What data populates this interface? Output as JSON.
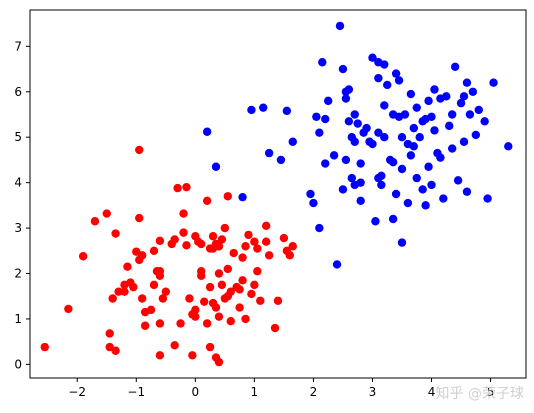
{
  "chart_data": {
    "type": "scatter",
    "title": "",
    "xlabel": "",
    "ylabel": "",
    "xlim": [
      -2.8,
      5.6
    ],
    "ylim": [
      -0.3,
      7.8
    ],
    "xticks": [
      -2,
      -1,
      0,
      1,
      2,
      3,
      4,
      5
    ],
    "yticks": [
      0,
      1,
      2,
      3,
      4,
      5,
      6,
      7
    ],
    "grid": false,
    "legend": "none",
    "series": [
      {
        "color": "#ff0000",
        "points": [
          [
            -2.55,
            0.38
          ],
          [
            -2.15,
            1.22
          ],
          [
            -1.9,
            2.38
          ],
          [
            -1.7,
            3.15
          ],
          [
            -1.5,
            3.32
          ],
          [
            -1.45,
            0.68
          ],
          [
            -1.45,
            0.38
          ],
          [
            -1.4,
            1.45
          ],
          [
            -1.35,
            2.88
          ],
          [
            -1.35,
            0.3
          ],
          [
            -1.3,
            1.6
          ],
          [
            -1.2,
            1.75
          ],
          [
            -1.2,
            1.6
          ],
          [
            -1.15,
            2.15
          ],
          [
            -1.1,
            1.8
          ],
          [
            -1.05,
            1.7
          ],
          [
            -1.0,
            2.48
          ],
          [
            -0.95,
            4.72
          ],
          [
            -0.95,
            3.22
          ],
          [
            -0.95,
            2.3
          ],
          [
            -0.9,
            2.4
          ],
          [
            -0.9,
            1.45
          ],
          [
            -0.85,
            1.15
          ],
          [
            -0.85,
            0.85
          ],
          [
            -0.75,
            1.2
          ],
          [
            -0.7,
            2.5
          ],
          [
            -0.7,
            1.75
          ],
          [
            -0.65,
            2.05
          ],
          [
            -0.6,
            2.72
          ],
          [
            -0.6,
            2.05
          ],
          [
            -0.6,
            1.95
          ],
          [
            -0.6,
            0.9
          ],
          [
            -0.6,
            0.2
          ],
          [
            -0.55,
            1.45
          ],
          [
            -0.5,
            1.6
          ],
          [
            -0.4,
            2.65
          ],
          [
            -0.35,
            2.75
          ],
          [
            -0.35,
            0.42
          ],
          [
            -0.3,
            3.88
          ],
          [
            -0.25,
            0.9
          ],
          [
            -0.2,
            3.32
          ],
          [
            -0.2,
            2.9
          ],
          [
            -0.15,
            3.9
          ],
          [
            -0.15,
            2.62
          ],
          [
            -0.1,
            1.45
          ],
          [
            -0.05,
            1.1
          ],
          [
            -0.05,
            0.2
          ],
          [
            0.0,
            2.82
          ],
          [
            0.0,
            1.05
          ],
          [
            0.0,
            1.2
          ],
          [
            0.05,
            2.7
          ],
          [
            0.1,
            2.65
          ],
          [
            0.1,
            2.05
          ],
          [
            0.1,
            1.95
          ],
          [
            0.15,
            1.38
          ],
          [
            0.2,
            3.6
          ],
          [
            0.2,
            0.9
          ],
          [
            0.25,
            2.55
          ],
          [
            0.25,
            1.7
          ],
          [
            0.25,
            0.38
          ],
          [
            0.3,
            2.82
          ],
          [
            0.3,
            2.55
          ],
          [
            0.3,
            1.35
          ],
          [
            0.35,
            2.65
          ],
          [
            0.35,
            1.25
          ],
          [
            0.35,
            0.15
          ],
          [
            0.4,
            2.6
          ],
          [
            0.4,
            1.05
          ],
          [
            0.4,
            2.0
          ],
          [
            0.4,
            0.05
          ],
          [
            0.45,
            2.75
          ],
          [
            0.45,
            1.75
          ],
          [
            0.5,
            3.0
          ],
          [
            0.5,
            1.45
          ],
          [
            0.55,
            3.7
          ],
          [
            0.55,
            2.1
          ],
          [
            0.55,
            1.5
          ],
          [
            0.6,
            1.6
          ],
          [
            0.6,
            0.95
          ],
          [
            0.65,
            2.45
          ],
          [
            0.7,
            1.7
          ],
          [
            0.75,
            1.65
          ],
          [
            0.75,
            1.25
          ],
          [
            0.8,
            2.35
          ],
          [
            0.8,
            1.85
          ],
          [
            0.85,
            2.6
          ],
          [
            0.85,
            1.0
          ],
          [
            0.9,
            2.85
          ],
          [
            0.95,
            1.55
          ],
          [
            1.0,
            2.7
          ],
          [
            1.0,
            1.75
          ],
          [
            1.05,
            2.55
          ],
          [
            1.05,
            2.05
          ],
          [
            1.1,
            1.4
          ],
          [
            1.2,
            3.05
          ],
          [
            1.2,
            2.7
          ],
          [
            1.25,
            2.4
          ],
          [
            1.35,
            0.8
          ],
          [
            1.4,
            1.4
          ],
          [
            1.5,
            2.78
          ],
          [
            1.55,
            2.5
          ],
          [
            1.6,
            2.4
          ],
          [
            1.65,
            2.6
          ]
        ]
      },
      {
        "color": "#0000ff",
        "points": [
          [
            0.2,
            5.12
          ],
          [
            0.35,
            4.35
          ],
          [
            0.8,
            3.68
          ],
          [
            0.95,
            5.6
          ],
          [
            1.15,
            5.65
          ],
          [
            1.25,
            4.65
          ],
          [
            1.45,
            4.5
          ],
          [
            1.55,
            5.58
          ],
          [
            1.65,
            4.9
          ],
          [
            1.95,
            3.75
          ],
          [
            2.0,
            3.55
          ],
          [
            2.05,
            5.45
          ],
          [
            2.1,
            5.1
          ],
          [
            2.1,
            3.0
          ],
          [
            2.15,
            6.65
          ],
          [
            2.2,
            5.4
          ],
          [
            2.2,
            4.42
          ],
          [
            2.25,
            5.8
          ],
          [
            2.35,
            4.6
          ],
          [
            2.4,
            2.2
          ],
          [
            2.45,
            7.45
          ],
          [
            2.5,
            6.5
          ],
          [
            2.5,
            3.85
          ],
          [
            2.55,
            6.0
          ],
          [
            2.55,
            5.85
          ],
          [
            2.55,
            4.5
          ],
          [
            2.6,
            6.05
          ],
          [
            2.6,
            5.35
          ],
          [
            2.65,
            5.0
          ],
          [
            2.65,
            4.1
          ],
          [
            2.7,
            4.9
          ],
          [
            2.7,
            3.95
          ],
          [
            2.7,
            5.5
          ],
          [
            2.75,
            5.3
          ],
          [
            2.8,
            4.42
          ],
          [
            2.8,
            4.0
          ],
          [
            2.8,
            3.6
          ],
          [
            2.85,
            5.1
          ],
          [
            2.9,
            5.2
          ],
          [
            2.95,
            4.9
          ],
          [
            3.0,
            6.75
          ],
          [
            3.0,
            4.85
          ],
          [
            3.05,
            3.15
          ],
          [
            3.1,
            6.65
          ],
          [
            3.1,
            6.3
          ],
          [
            3.1,
            5.1
          ],
          [
            3.1,
            4.1
          ],
          [
            3.15,
            3.95
          ],
          [
            3.15,
            4.15
          ],
          [
            3.2,
            6.6
          ],
          [
            3.2,
            5.7
          ],
          [
            3.2,
            5.0
          ],
          [
            3.25,
            6.15
          ],
          [
            3.3,
            4.5
          ],
          [
            3.35,
            5.5
          ],
          [
            3.35,
            3.2
          ],
          [
            3.35,
            4.45
          ],
          [
            3.4,
            6.4
          ],
          [
            3.4,
            3.75
          ],
          [
            3.45,
            6.25
          ],
          [
            3.45,
            5.45
          ],
          [
            3.5,
            5.0
          ],
          [
            3.5,
            4.3
          ],
          [
            3.5,
            2.68
          ],
          [
            3.55,
            5.5
          ],
          [
            3.6,
            3.55
          ],
          [
            3.6,
            4.85
          ],
          [
            3.65,
            5.95
          ],
          [
            3.65,
            4.6
          ],
          [
            3.7,
            5.2
          ],
          [
            3.7,
            4.8
          ],
          [
            3.75,
            5.65
          ],
          [
            3.75,
            4.1
          ],
          [
            3.8,
            5.0
          ],
          [
            3.85,
            3.85
          ],
          [
            3.85,
            5.35
          ],
          [
            3.9,
            5.4
          ],
          [
            3.9,
            3.5
          ],
          [
            3.95,
            5.8
          ],
          [
            3.95,
            4.35
          ],
          [
            4.0,
            5.45
          ],
          [
            4.0,
            3.95
          ],
          [
            4.05,
            6.05
          ],
          [
            4.05,
            5.15
          ],
          [
            4.1,
            4.65
          ],
          [
            4.15,
            5.85
          ],
          [
            4.15,
            4.55
          ],
          [
            4.2,
            3.65
          ],
          [
            4.25,
            5.9
          ],
          [
            4.3,
            5.25
          ],
          [
            4.35,
            5.5
          ],
          [
            4.35,
            4.75
          ],
          [
            4.4,
            6.55
          ],
          [
            4.45,
            4.05
          ],
          [
            4.5,
            5.75
          ],
          [
            4.55,
            5.9
          ],
          [
            4.55,
            4.9
          ],
          [
            4.6,
            6.2
          ],
          [
            4.6,
            3.8
          ],
          [
            4.65,
            5.5
          ],
          [
            4.7,
            6.0
          ],
          [
            4.75,
            5.05
          ],
          [
            4.8,
            5.6
          ],
          [
            4.9,
            5.35
          ],
          [
            4.95,
            3.65
          ],
          [
            5.05,
            6.2
          ],
          [
            5.3,
            4.8
          ]
        ]
      }
    ],
    "watermark": "知乎 @荣子球"
  }
}
